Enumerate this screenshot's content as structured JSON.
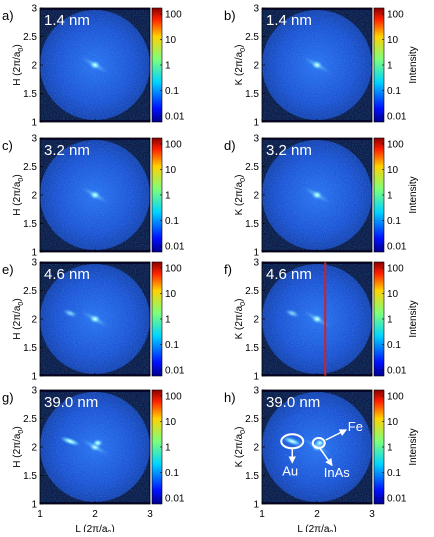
{
  "figure": {
    "colorbar_ticks": [
      "100",
      "10",
      "1",
      "0.1",
      "0.01"
    ],
    "intensity_label": "Intensity",
    "ylabel_left": "H (2π/a",
    "ylabel_right": "K (2π/a",
    "ylabel_close": ")",
    "ylabel_sub": "0",
    "xlabel": "L (2π/a",
    "xlabel_close": ")",
    "xlabel_sub": "0",
    "ytick_labels": [
      "3",
      "2.5",
      "2",
      "1.5",
      "1"
    ],
    "xtick_labels": [
      "1",
      "2",
      "3"
    ]
  },
  "colors": {
    "background": "#08082e",
    "disk_blue": "#1a4fd6",
    "spot": "#7fe8ff",
    "cut_line": "#d0202a",
    "annotation": "#ffffff"
  },
  "panels": [
    {
      "id": "a",
      "letter": "a)",
      "thickness": "1.4 nm",
      "axis": "H"
    },
    {
      "id": "b",
      "letter": "b)",
      "thickness": "1.4 nm",
      "axis": "K"
    },
    {
      "id": "c",
      "letter": "c)",
      "thickness": "3.2 nm",
      "axis": "H"
    },
    {
      "id": "d",
      "letter": "d)",
      "thickness": "3.2 nm",
      "axis": "K"
    },
    {
      "id": "e",
      "letter": "e)",
      "thickness": "4.6 nm",
      "axis": "H"
    },
    {
      "id": "f",
      "letter": "f)",
      "thickness": "4.6 nm",
      "axis": "K",
      "cut_line_L": 2.15
    },
    {
      "id": "g",
      "letter": "g)",
      "thickness": "39.0 nm",
      "axis": "H"
    },
    {
      "id": "h",
      "letter": "h)",
      "thickness": "39.0 nm",
      "axis": "K",
      "annotations": [
        "Au",
        "Fe",
        "InAs"
      ]
    }
  ],
  "chart_data": {
    "type": "heatmap",
    "description_axes": {
      "x": "L (2π/a0)",
      "y": "H or K (2π/a0)"
    },
    "xlim": [
      1,
      3
    ],
    "ylim": [
      1,
      3
    ],
    "color_scale": {
      "type": "log",
      "range": [
        0.01,
        100
      ],
      "label": "Intensity"
    },
    "features": [
      {
        "name": "InAs",
        "L": 2.0,
        "H_or_K": 2.0
      },
      {
        "name": "Au",
        "L": 1.55,
        "H_or_K": 2.1
      },
      {
        "name": "Fe",
        "L": 2.05,
        "H_or_K": 2.07
      }
    ]
  }
}
